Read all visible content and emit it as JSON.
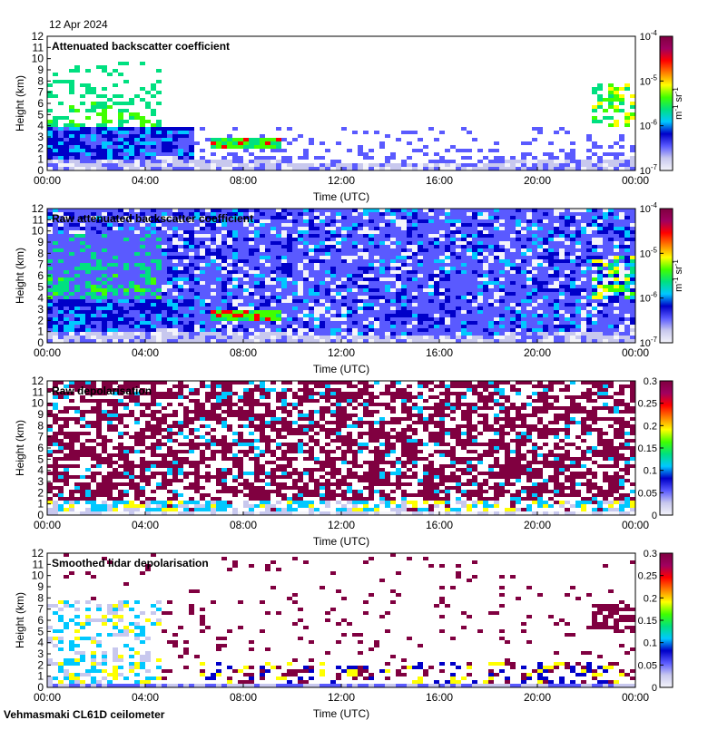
{
  "header": {
    "date": "12 Apr 2024"
  },
  "footer": {
    "instrument": "Vehmasmaki CL61D ceilometer"
  },
  "colors": {
    "background": "#ffffff",
    "axis": "#000000",
    "scale": [
      "#f4f4fa",
      "#c8c8ee",
      "#5a5aff",
      "#0000c8",
      "#00c8ff",
      "#00e080",
      "#40ff00",
      "#ffff00",
      "#ff8000",
      "#ff0000",
      "#a00060",
      "#800040"
    ]
  },
  "chart_data": [
    {
      "type": "heatmap",
      "title": "Attenuated backscatter coefficient",
      "xlabel": "Time (UTC)",
      "ylabel": "Height (km)",
      "xticks": [
        "00:00",
        "04:00",
        "08:00",
        "12:00",
        "16:00",
        "20:00",
        "00:00"
      ],
      "xlim": [
        0,
        24
      ],
      "yticks": [
        "0",
        "1",
        "2",
        "3",
        "4",
        "5",
        "6",
        "7",
        "8",
        "9",
        "10",
        "11",
        "12"
      ],
      "ylim": [
        0,
        12
      ],
      "colorbar": {
        "scale": "log",
        "range": [
          1e-07,
          0.0001
        ],
        "ticks": [
          {
            "base": "10",
            "exp": "-7"
          },
          {
            "base": "10",
            "exp": "-6"
          },
          {
            "base": "10",
            "exp": "-5"
          },
          {
            "base": "10",
            "exp": "-4"
          }
        ],
        "unit_main": "m",
        "unit_sup1": "-1",
        "unit_mid": " sr",
        "unit_sup2": "-1"
      }
    },
    {
      "type": "heatmap",
      "title": "Raw attenuated backscatter coefficient",
      "xlabel": "Time (UTC)",
      "ylabel": "Height (km)",
      "xticks": [
        "00:00",
        "04:00",
        "08:00",
        "12:00",
        "16:00",
        "20:00",
        "00:00"
      ],
      "xlim": [
        0,
        24
      ],
      "yticks": [
        "0",
        "1",
        "2",
        "3",
        "4",
        "5",
        "6",
        "7",
        "8",
        "9",
        "10",
        "11",
        "12"
      ],
      "ylim": [
        0,
        12
      ],
      "colorbar": {
        "scale": "log",
        "range": [
          1e-07,
          0.0001
        ],
        "ticks": [
          {
            "base": "10",
            "exp": "-7"
          },
          {
            "base": "10",
            "exp": "-6"
          },
          {
            "base": "10",
            "exp": "-5"
          },
          {
            "base": "10",
            "exp": "-4"
          }
        ],
        "unit_main": "m",
        "unit_sup1": "-1",
        "unit_mid": " sr",
        "unit_sup2": "-1"
      }
    },
    {
      "type": "heatmap",
      "title": "Raw depolarisation",
      "xlabel": "Time (UTC)",
      "ylabel": "Height (km)",
      "xticks": [
        "00:00",
        "04:00",
        "08:00",
        "12:00",
        "16:00",
        "20:00",
        "00:00"
      ],
      "xlim": [
        0,
        24
      ],
      "yticks": [
        "0",
        "1",
        "2",
        "3",
        "4",
        "5",
        "6",
        "7",
        "8",
        "9",
        "10",
        "11",
        "12"
      ],
      "ylim": [
        0,
        12
      ],
      "colorbar": {
        "scale": "linear",
        "range": [
          0,
          0.3
        ],
        "ticks": [
          "0",
          "0.05",
          "0.1",
          "0.15",
          "0.2",
          "0.25",
          "0.3"
        ]
      }
    },
    {
      "type": "heatmap",
      "title": "Smoothed lidar depolarisation",
      "xlabel": "Time (UTC)",
      "ylabel": "Height (km)",
      "xticks": [
        "00:00",
        "04:00",
        "08:00",
        "12:00",
        "16:00",
        "20:00",
        "00:00"
      ],
      "xlim": [
        0,
        24
      ],
      "yticks": [
        "0",
        "1",
        "2",
        "3",
        "4",
        "5",
        "6",
        "7",
        "8",
        "9",
        "10",
        "11",
        "12"
      ],
      "ylim": [
        0,
        12
      ],
      "colorbar": {
        "scale": "linear",
        "range": [
          0,
          0.3
        ],
        "ticks": [
          "0",
          "0.05",
          "0.1",
          "0.15",
          "0.2",
          "0.25",
          "0.3"
        ]
      }
    }
  ]
}
